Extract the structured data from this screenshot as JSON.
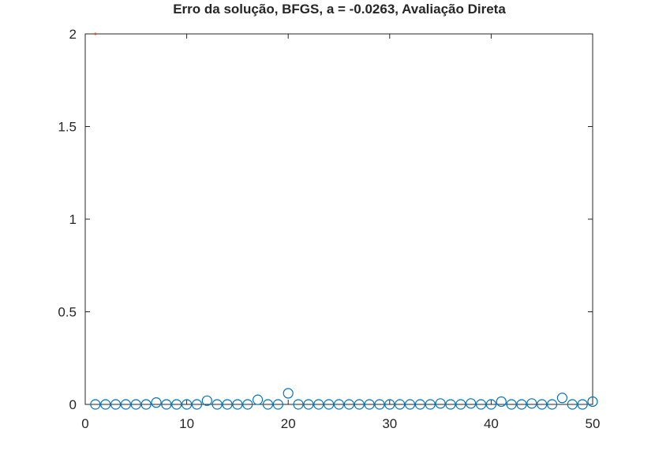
{
  "chart_data": {
    "type": "scatter",
    "title": "Erro da solução, BFGS, a = -0.0263, Avaliação Direta",
    "xlabel": "",
    "ylabel": "",
    "xlim": [
      0,
      50
    ],
    "ylim": [
      0,
      2
    ],
    "xticks": [
      0,
      10,
      20,
      30,
      40,
      50
    ],
    "xtick_labels": [
      "0",
      "10",
      "20",
      "30",
      "40",
      "50"
    ],
    "yticks": [
      0,
      0.5,
      1,
      1.5,
      2
    ],
    "ytick_labels": [
      "0",
      "0.5",
      "1",
      "1.5",
      "2"
    ],
    "grid": false,
    "legend": "none",
    "box": true,
    "series": [
      {
        "marker": "circle",
        "color": "#0072bd",
        "x": [
          1,
          2,
          3,
          4,
          5,
          6,
          7,
          8,
          9,
          10,
          11,
          12,
          13,
          14,
          15,
          16,
          17,
          18,
          19,
          20,
          21,
          22,
          23,
          24,
          25,
          26,
          27,
          28,
          29,
          30,
          31,
          32,
          33,
          34,
          35,
          36,
          37,
          38,
          39,
          40,
          41,
          42,
          43,
          44,
          45,
          46,
          47,
          48,
          49,
          50
        ],
        "values": [
          0,
          0,
          0,
          0,
          0,
          0,
          0.01,
          0,
          0,
          0,
          0,
          0.02,
          0,
          0,
          0,
          0,
          0.025,
          0,
          0,
          0.06,
          0,
          0,
          0,
          0,
          0,
          0,
          0,
          0,
          0,
          0,
          0,
          0,
          0,
          0,
          0.005,
          0,
          0,
          0.005,
          0,
          0,
          0.015,
          0,
          0,
          0.005,
          0,
          0,
          0.035,
          0,
          0,
          0.015
        ]
      },
      {
        "marker": "point",
        "color": "#d95319",
        "x": [
          1
        ],
        "values": [
          2
        ]
      }
    ]
  }
}
